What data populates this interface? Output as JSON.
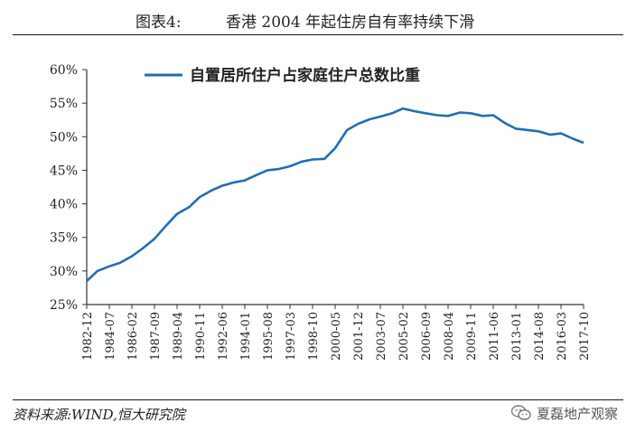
{
  "figure": {
    "prefix": "图表4:",
    "title": "香港 2004 年起住房自有率持续下滑",
    "source": "资料来源:WIND,恒大研究院",
    "watermark": "夏磊地产观察"
  },
  "colors": {
    "line": "#1f6fb4",
    "axis": "#333333",
    "text": "#222222"
  },
  "chart_data": {
    "type": "line",
    "legend": "top-left",
    "grid": false,
    "ylim": [
      0.25,
      0.6
    ],
    "yticks": [
      "25%",
      "30%",
      "35%",
      "40%",
      "45%",
      "50%",
      "55%",
      "60%"
    ],
    "ytick_values": [
      0.25,
      0.3,
      0.35,
      0.4,
      0.45,
      0.5,
      0.55,
      0.6
    ],
    "xtick_labels": [
      "1982-12",
      "1984-07",
      "1986-02",
      "1987-09",
      "1989-04",
      "1990-11",
      "1992-06",
      "1994-01",
      "1995-08",
      "1997-03",
      "1998-10",
      "2000-05",
      "2001-12",
      "2003-07",
      "2005-02",
      "2006-09",
      "2008-04",
      "2009-11",
      "2011-06",
      "2013-01",
      "2014-08",
      "2016-03",
      "2017-10"
    ],
    "series": [
      {
        "name": "自置居所住户占家庭住户总数比重",
        "x": [
          "1982-12",
          "1983-09",
          "1984-07",
          "1985-04",
          "1986-02",
          "1986-12",
          "1987-09",
          "1988-07",
          "1989-04",
          "1990-02",
          "1990-11",
          "1991-09",
          "1992-06",
          "1993-04",
          "1994-01",
          "1994-11",
          "1995-08",
          "1996-06",
          "1997-03",
          "1998-01",
          "1998-10",
          "1999-08",
          "2000-05",
          "2001-03",
          "2001-12",
          "2002-10",
          "2003-07",
          "2004-05",
          "2005-02",
          "2005-12",
          "2006-09",
          "2007-07",
          "2008-04",
          "2009-02",
          "2009-11",
          "2010-09",
          "2011-06",
          "2012-04",
          "2013-01",
          "2013-11",
          "2014-08",
          "2015-06",
          "2016-03",
          "2017-01",
          "2017-10"
        ],
        "values": [
          0.285,
          0.3,
          0.307,
          0.312,
          0.322,
          0.335,
          0.348,
          0.368,
          0.385,
          0.395,
          0.41,
          0.42,
          0.427,
          0.432,
          0.435,
          0.443,
          0.45,
          0.452,
          0.456,
          0.463,
          0.466,
          0.467,
          0.483,
          0.51,
          0.519,
          0.526,
          0.53,
          0.535,
          0.542,
          0.538,
          0.535,
          0.532,
          0.531,
          0.536,
          0.535,
          0.531,
          0.532,
          0.52,
          0.512,
          0.51,
          0.508,
          0.503,
          0.505,
          0.497,
          0.491
        ]
      }
    ]
  }
}
